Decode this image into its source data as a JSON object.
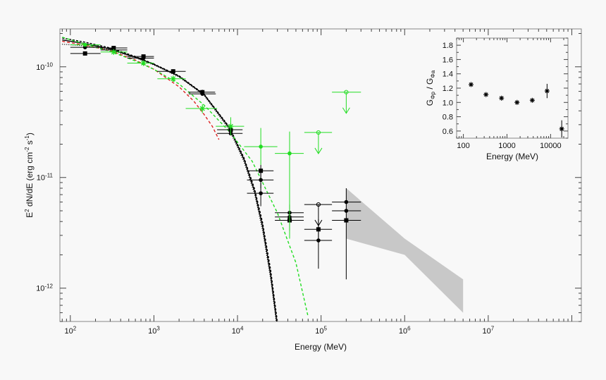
{
  "chart_data": [
    {
      "type": "scatter",
      "xscale": "log",
      "yscale": "log",
      "xlabel": "Energy (MeV)",
      "ylabel_parts": [
        "E",
        "2",
        " dN/dE (erg cm",
        "-2",
        " s",
        "-1",
        ")"
      ],
      "xlim": [
        75,
        130000000
      ],
      "ylim": [
        5e-13,
        2.2e-10
      ],
      "xticks": [
        {
          "value": 100,
          "base": "10",
          "exp": "2"
        },
        {
          "value": 1000,
          "base": "10",
          "exp": "3"
        },
        {
          "value": 10000,
          "base": "10",
          "exp": "4"
        },
        {
          "value": 100000,
          "base": "10",
          "exp": "5"
        },
        {
          "value": 1000000,
          "base": "10",
          "exp": "6"
        },
        {
          "value": 10000000,
          "base": "10",
          "exp": "7"
        }
      ],
      "yticks": [
        {
          "value": 1e-10,
          "base": "10",
          "exp": "-10"
        },
        {
          "value": 1e-11,
          "base": "10",
          "exp": "-11"
        },
        {
          "value": 1e-12,
          "base": "10",
          "exp": "-12"
        }
      ],
      "curves": [
        {
          "color": "#000000",
          "dash": "solid",
          "x": [
            80,
            150,
            300,
            600,
            1000,
            2000,
            4000,
            8000,
            12000,
            16000,
            20000,
            25000,
            30000
          ],
          "y": [
            1.75e-10,
            1.62e-10,
            1.45e-10,
            1.22e-10,
            1.05e-10,
            8.2e-11,
            5.6e-11,
            2.8e-11,
            1.45e-11,
            7.5e-12,
            3.6e-12,
            1.3e-12,
            4.5e-13
          ]
        },
        {
          "color": "#000000",
          "dash": "3,2",
          "x": [
            80,
            150,
            300,
            600,
            1000,
            2000,
            4000,
            8000,
            12000,
            16000,
            20000,
            25000,
            30000
          ],
          "y": [
            1.82e-10,
            1.67e-10,
            1.48e-10,
            1.24e-10,
            1.06e-10,
            8.3e-11,
            5.65e-11,
            2.85e-11,
            1.5e-11,
            7.9e-12,
            3.9e-12,
            1.45e-12,
            5e-13
          ]
        },
        {
          "color": "#000000",
          "dash": "1,2",
          "x": [
            80,
            150,
            300,
            600,
            1000,
            2000,
            4000,
            8000,
            12000,
            16000,
            20000,
            25000,
            30000
          ],
          "y": [
            1.6e-10,
            1.55e-10,
            1.42e-10,
            1.21e-10,
            1.04e-10,
            8.1e-11,
            5.5e-11,
            2.7e-11,
            1.38e-11,
            7.1e-12,
            3.3e-12,
            1.2e-12,
            4.2e-13
          ]
        },
        {
          "color": "#dd2222",
          "dash": "4,3",
          "x": [
            80,
            150,
            300,
            600,
            1000,
            2000,
            3000,
            4000,
            5000,
            6000
          ],
          "y": [
            1.7e-10,
            1.57e-10,
            1.4e-10,
            1.15e-10,
            9.5e-11,
            6.6e-11,
            4.9e-11,
            3.7e-11,
            2.9e-11,
            2.2e-11
          ]
        },
        {
          "color": "#22dd22",
          "dash": "4,3",
          "x": [
            80,
            150,
            300,
            600,
            1000,
            2000,
            4000,
            8000,
            15000,
            30000,
            50000,
            70000
          ],
          "y": [
            1.85e-10,
            1.6e-10,
            1.38e-10,
            1.13e-10,
            9.5e-11,
            7e-11,
            4.5e-11,
            2.6e-11,
            1.4e-11,
            4.8e-12,
            1.7e-12,
            5.5e-13
          ]
        }
      ],
      "shaded_band": {
        "color": "#c8c8c8",
        "x": [
          200000,
          1000000,
          5000000
        ],
        "upper": [
          8e-12,
          2.8e-12,
          1.2e-12
        ],
        "lower": [
          2.8e-12,
          2e-12,
          6e-13
        ]
      },
      "points": [
        {
          "x": 150,
          "y": 1.32e-10,
          "xerr": [
            100,
            230
          ],
          "yerr": [
            1.27e-10,
            1.37e-10
          ],
          "marker": "square",
          "color": "#000000"
        },
        {
          "x": 150,
          "y": 1.5e-10,
          "xerr": [
            100,
            230
          ],
          "yerr": [
            1.45e-10,
            1.55e-10
          ],
          "marker": "circle",
          "color": "#000000"
        },
        {
          "x": 150,
          "y": 1.58e-10,
          "xerr": [
            100,
            230
          ],
          "marker": "circle",
          "color": "#22dd22"
        },
        {
          "x": 330,
          "y": 1.48e-10,
          "xerr": [
            230,
            480
          ],
          "yerr": [
            1.43e-10,
            1.53e-10
          ],
          "marker": "square",
          "color": "#000000"
        },
        {
          "x": 330,
          "y": 1.42e-10,
          "xerr": [
            230,
            480
          ],
          "yerr": [
            1.38e-10,
            1.46e-10
          ],
          "marker": "circle",
          "color": "#000000"
        },
        {
          "x": 330,
          "y": 1.36e-10,
          "xerr": [
            230,
            480
          ],
          "marker": "star",
          "color": "#22dd22"
        },
        {
          "x": 750,
          "y": 1.24e-10,
          "xerr": [
            480,
            1000
          ],
          "yerr": [
            1.2e-10,
            1.28e-10
          ],
          "marker": "square",
          "color": "#000000"
        },
        {
          "x": 750,
          "y": 1.2e-10,
          "xerr": [
            480,
            1000
          ],
          "marker": "circle",
          "color": "#000000"
        },
        {
          "x": 750,
          "y": 1.08e-10,
          "xerr": [
            480,
            1000
          ],
          "marker": "star",
          "color": "#22dd22"
        },
        {
          "x": 1700,
          "y": 9.1e-11,
          "xerr": [
            1100,
            2400
          ],
          "yerr": [
            8.7e-11,
            9.5e-11
          ],
          "marker": "square",
          "color": "#000000"
        },
        {
          "x": 1700,
          "y": 7.8e-11,
          "xerr": [
            1100,
            2400
          ],
          "yerr": [
            7.3e-11,
            8.3e-11
          ],
          "marker": "star",
          "color": "#22dd22"
        },
        {
          "x": 3800,
          "y": 5.9e-11,
          "xerr": [
            2600,
            5400
          ],
          "yerr": [
            5.6e-11,
            6.2e-11
          ],
          "marker": "square",
          "color": "#000000"
        },
        {
          "x": 3800,
          "y": 5.7e-11,
          "xerr": [
            2600,
            5500
          ],
          "marker": "circle",
          "color": "#000000"
        },
        {
          "x": 3800,
          "y": 4.2e-11,
          "xerr": [
            2400,
            5700
          ],
          "yerr": [
            3.8e-11,
            4.6e-11
          ],
          "marker": "star",
          "color": "#22dd22"
        },
        {
          "x": 8300,
          "y": 2.7e-11,
          "xerr": [
            5700,
            11500
          ],
          "yerr": [
            2.5e-11,
            3e-11
          ],
          "marker": "square",
          "color": "#000000"
        },
        {
          "x": 8300,
          "y": 2.5e-11,
          "xerr": [
            5700,
            11500
          ],
          "marker": "circle",
          "color": "#000000"
        },
        {
          "x": 8300,
          "y": 2.9e-11,
          "xerr": [
            5500,
            12000
          ],
          "yerr": [
            2.4e-11,
            3.5e-11
          ],
          "marker": "star",
          "color": "#22dd22"
        },
        {
          "x": 19000,
          "y": 1.15e-11,
          "xerr": [
            13000,
            27000
          ],
          "yerr": [
            1e-11,
            1.3e-11
          ],
          "marker": "square",
          "color": "#000000"
        },
        {
          "x": 19000,
          "y": 9.5e-12,
          "xerr": [
            13000,
            27000
          ],
          "yerr": [
            8e-12,
            1.1e-11
          ],
          "marker": "circle",
          "color": "#000000"
        },
        {
          "x": 19000,
          "y": 7.2e-12,
          "xerr": [
            13000,
            27000
          ],
          "yerr": [
            5.5e-12,
            9e-12
          ],
          "marker": "circle",
          "color": "#000000"
        },
        {
          "x": 19000,
          "y": 1.9e-11,
          "xerr": [
            12000,
            30000
          ],
          "yerr": [
            1.3e-11,
            2.8e-11
          ],
          "marker": "circle",
          "color": "#22dd22"
        },
        {
          "x": 42000,
          "y": 4.8e-12,
          "xerr": [
            28000,
            62000
          ],
          "yerr": [
            3.9e-12,
            5.7e-12
          ],
          "marker": "circle",
          "color": "#000000"
        },
        {
          "x": 42000,
          "y": 4.4e-12,
          "xerr": [
            28000,
            62000
          ],
          "marker": "circle",
          "color": "#000000"
        },
        {
          "x": 42000,
          "y": 4.1e-12,
          "xerr": [
            28000,
            62000
          ],
          "yerr": [
            3.3e-12,
            4.9e-12
          ],
          "marker": "square",
          "color": "#000000"
        },
        {
          "x": 42000,
          "y": 1.65e-11,
          "xerr": [
            28000,
            62000
          ],
          "yerr": [
            2.8e-12,
            2.6e-11
          ],
          "marker": "circle",
          "color": "#22dd22"
        },
        {
          "x": 93000,
          "y": 3.4e-12,
          "xerr": [
            63000,
            135000
          ],
          "yerr": [
            2.8e-12,
            4.2e-12
          ],
          "marker": "square",
          "color": "#000000"
        },
        {
          "x": 93000,
          "y": 2.7e-12,
          "xerr": [
            63000,
            135000
          ],
          "yerr": [
            1.5e-12,
            3.8e-12
          ],
          "marker": "circle",
          "color": "#000000"
        },
        {
          "x": 200000,
          "y": 6e-12,
          "xerr": [
            135000,
            300000
          ],
          "yerr": [
            1.2e-12,
            8e-12
          ],
          "marker": "circle",
          "color": "#000000"
        },
        {
          "x": 200000,
          "y": 5e-12,
          "xerr": [
            135000,
            300000
          ],
          "marker": "circle",
          "color": "#000000"
        },
        {
          "x": 200000,
          "y": 4.1e-12,
          "xerr": [
            135000,
            300000
          ],
          "marker": "square",
          "color": "#000000"
        }
      ],
      "upper_limits": [
        {
          "x": 93000,
          "y": 5.7e-12,
          "xerr": [
            63000,
            135000
          ],
          "color": "#000000"
        },
        {
          "x": 93000,
          "y": 2.55e-11,
          "xerr": [
            63000,
            135000
          ],
          "color": "#22dd22"
        },
        {
          "x": 200000,
          "y": 5.9e-11,
          "xerr": [
            135000,
            300000
          ],
          "color": "#22dd22"
        }
      ]
    },
    {
      "type": "scatter",
      "xscale": "log",
      "xlabel": "Energy (MeV)",
      "ylabel_parts": [
        "G",
        "Φp",
        " / G",
        "Φa"
      ],
      "xlim": [
        70,
        25000
      ],
      "ylim": [
        0.5,
        1.9
      ],
      "xticks": [
        {
          "value": 100,
          "label": "100"
        },
        {
          "value": 1000,
          "label": "1000"
        },
        {
          "value": 10000,
          "label": "10000"
        }
      ],
      "yticks": [
        {
          "value": 0.6,
          "label": "0.6"
        },
        {
          "value": 0.8,
          "label": "0.8"
        },
        {
          "value": 1.0,
          "label": "1.0"
        },
        {
          "value": 1.2,
          "label": "1.2"
        },
        {
          "value": 1.4,
          "label": "1.4"
        },
        {
          "value": 1.6,
          "label": "1.6"
        },
        {
          "value": 1.8,
          "label": "1.8"
        }
      ],
      "points": [
        {
          "x": 150,
          "y": 1.25
        },
        {
          "x": 330,
          "y": 1.11
        },
        {
          "x": 750,
          "y": 1.06
        },
        {
          "x": 1700,
          "y": 1.0
        },
        {
          "x": 3800,
          "y": 1.03
        },
        {
          "x": 8300,
          "y": 1.16,
          "yerr": [
            1.06,
            1.26
          ]
        },
        {
          "x": 18000,
          "y": 0.63,
          "yerr": [
            0.51,
            0.75
          ]
        }
      ]
    }
  ]
}
